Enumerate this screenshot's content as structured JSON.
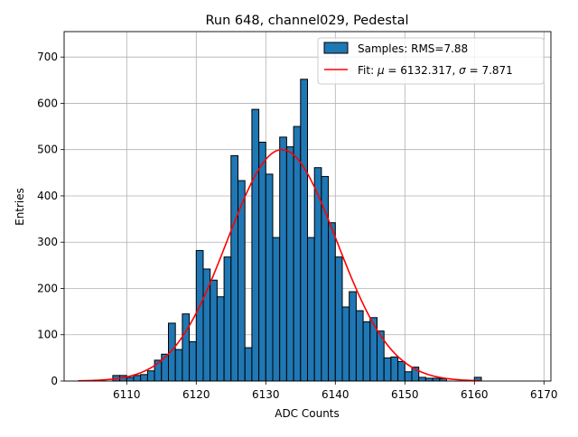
{
  "chart_data": {
    "type": "bar",
    "title": "Run 648, channel029, Pedestal",
    "xlabel": "ADC Counts",
    "ylabel": "Entries",
    "xlim": [
      6101,
      6171
    ],
    "ylim": [
      0,
      755
    ],
    "xticks": [
      6110,
      6120,
      6130,
      6140,
      6150,
      6160,
      6170
    ],
    "yticks": [
      0,
      100,
      200,
      300,
      400,
      500,
      600,
      700
    ],
    "grid": true,
    "legend_position": "top-right",
    "bin_width": 1,
    "series": [
      {
        "name": "Samples: RMS=7.88",
        "kind": "histogram",
        "color": "#1f77b4",
        "edge_color": "#000000",
        "bin_left_edges": [
          6108,
          6109,
          6110,
          6111,
          6112,
          6113,
          6114,
          6115,
          6116,
          6117,
          6118,
          6119,
          6120,
          6121,
          6122,
          6123,
          6124,
          6125,
          6126,
          6127,
          6128,
          6129,
          6130,
          6131,
          6132,
          6133,
          6134,
          6135,
          6136,
          6137,
          6138,
          6139,
          6140,
          6141,
          6142,
          6143,
          6144,
          6145,
          6146,
          6147,
          6148,
          6149,
          6150,
          6151,
          6152,
          6153,
          6154,
          6155,
          6160
        ],
        "values": [
          12,
          12,
          8,
          12,
          14,
          22,
          45,
          58,
          125,
          68,
          145,
          85,
          282,
          242,
          218,
          182,
          268,
          487,
          433,
          72,
          587,
          516,
          447,
          310,
          527,
          506,
          550,
          652,
          310,
          461,
          442,
          342,
          268,
          160,
          193,
          152,
          128,
          137,
          108,
          50,
          52,
          42,
          20,
          30,
          8,
          6,
          6,
          5,
          8
        ]
      },
      {
        "name": "Fit: μ = 6132.317, σ = 7.871",
        "kind": "gaussian_fit",
        "color": "#ff0000",
        "mu": 6132.317,
        "sigma": 7.871,
        "amplitude": 500,
        "x_range": [
          6103,
          6161
        ]
      }
    ]
  },
  "legend": {
    "samples_prefix": "Samples: RMS=7.88",
    "fit_prefix": "Fit: ",
    "mu_symbol": "μ",
    "mu_text": " = 6132.317, ",
    "sigma_symbol": "σ",
    "sigma_text": " = 7.871"
  }
}
